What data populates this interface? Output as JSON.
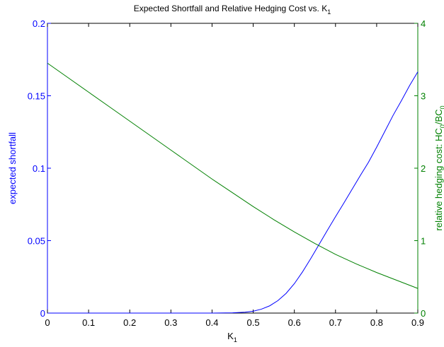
{
  "chart_data": {
    "type": "line",
    "title_main": "Expected Shortfall and Relative Hedging Cost vs. K",
    "title_sub": "1",
    "xlabel_main": "K",
    "xlabel_sub": "1",
    "ylabel_left": "expected shortfall",
    "ylabel_right_main": "relative hedging cost: HC",
    "ylabel_right_sub1": "0",
    "ylabel_right_mid": "/BC",
    "ylabel_right_sub2": "0",
    "xlim": [
      0,
      0.9
    ],
    "ylim_left": [
      0,
      0.2
    ],
    "ylim_right": [
      0,
      4
    ],
    "x_ticks": [
      "0",
      "0.1",
      "0.2",
      "0.3",
      "0.4",
      "0.5",
      "0.6",
      "0.7",
      "0.8",
      "0.9"
    ],
    "y_left_ticks": [
      "0",
      "0.05",
      "0.1",
      "0.15",
      "0.2"
    ],
    "y_right_ticks": [
      "0",
      "1",
      "2",
      "3",
      "4"
    ],
    "colors": {
      "left": "#0000ff",
      "right": "#008000",
      "axis": "#000000"
    },
    "series": [
      {
        "axis": "left",
        "color": "#0000ff",
        "x": [
          0,
          0.4,
          0.45,
          0.48,
          0.5,
          0.52,
          0.54,
          0.56,
          0.58,
          0.6,
          0.62,
          0.64,
          0.66,
          0.68,
          0.7,
          0.72,
          0.74,
          0.76,
          0.78,
          0.8,
          0.82,
          0.84,
          0.86,
          0.88,
          0.9
        ],
        "y": [
          0,
          0,
          0.0002,
          0.0006,
          0.0013,
          0.0027,
          0.005,
          0.0086,
          0.0136,
          0.0203,
          0.0285,
          0.0377,
          0.0473,
          0.057,
          0.0665,
          0.0758,
          0.0853,
          0.0948,
          0.104,
          0.1145,
          0.1255,
          0.1365,
          0.1465,
          0.157,
          0.1665
        ]
      },
      {
        "axis": "right",
        "color": "#008000",
        "x": [
          0,
          0.05,
          0.1,
          0.15,
          0.2,
          0.25,
          0.3,
          0.35,
          0.4,
          0.45,
          0.5,
          0.55,
          0.6,
          0.65,
          0.7,
          0.75,
          0.8,
          0.85,
          0.9
        ],
        "y": [
          3.45,
          3.25,
          3.05,
          2.85,
          2.65,
          2.45,
          2.25,
          2.05,
          1.85,
          1.66,
          1.47,
          1.29,
          1.12,
          0.96,
          0.81,
          0.68,
          0.56,
          0.45,
          0.34
        ]
      }
    ]
  }
}
